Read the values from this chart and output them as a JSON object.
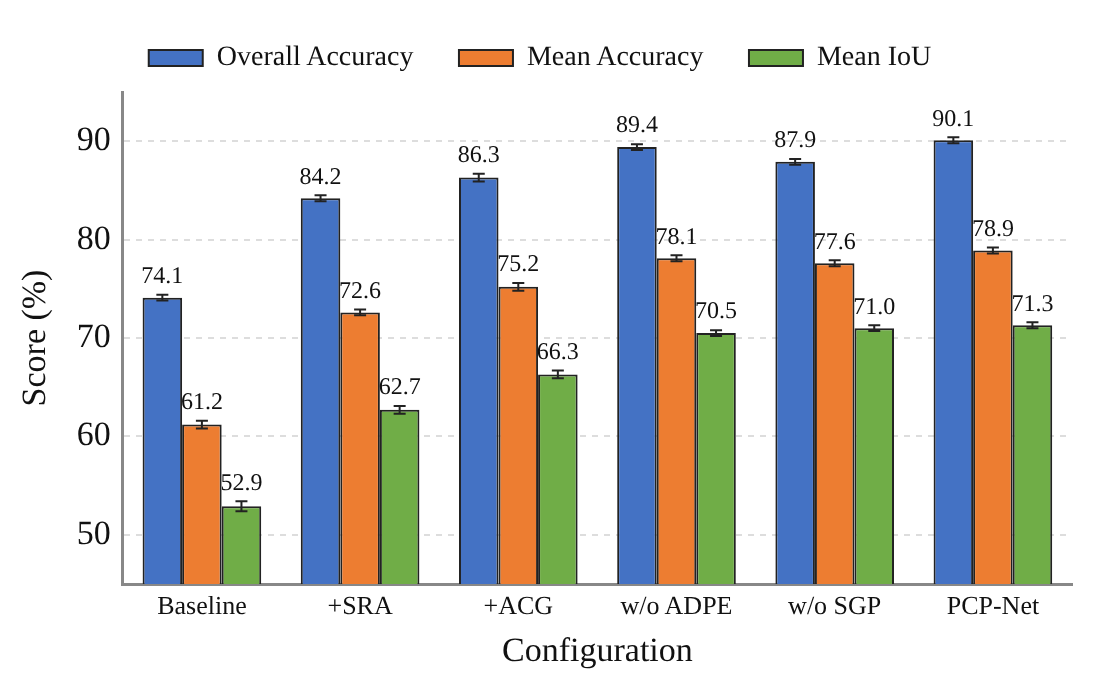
{
  "chart_data": {
    "type": "bar",
    "xlabel": "Configuration",
    "ylabel": "Score (%)",
    "categories": [
      "Baseline",
      "+SRA",
      "+ACG",
      "w/o ADPE",
      "w/o SGP",
      "PCP-Net"
    ],
    "series": [
      {
        "name": "Overall Accuracy",
        "color": "#4472c4",
        "values": [
          74.1,
          84.2,
          86.3,
          89.4,
          87.9,
          90.1
        ],
        "errors": [
          0.3,
          0.3,
          0.4,
          0.3,
          0.3,
          0.3
        ],
        "value_labels": [
          "74.1",
          "84.2",
          "86.3",
          "89.4",
          "87.9",
          "90.1"
        ]
      },
      {
        "name": "Mean Accuracy",
        "color": "#ed7d31",
        "values": [
          61.2,
          72.6,
          75.2,
          78.1,
          77.6,
          78.9
        ],
        "errors": [
          0.4,
          0.3,
          0.4,
          0.3,
          0.3,
          0.3
        ],
        "value_labels": [
          "61.2",
          "72.6",
          "75.2",
          "78.1",
          "77.6",
          "78.9"
        ]
      },
      {
        "name": "Mean IoU",
        "color": "#70ad47",
        "values": [
          52.9,
          62.7,
          66.3,
          70.5,
          71.0,
          71.3
        ],
        "errors": [
          0.5,
          0.4,
          0.4,
          0.3,
          0.3,
          0.3
        ],
        "value_labels": [
          "52.9",
          "62.7",
          "66.3",
          "70.5",
          "71.0",
          "71.3"
        ]
      }
    ],
    "ylim": [
      45,
      95
    ],
    "yticks": [
      50,
      60,
      70,
      80,
      90
    ],
    "grid": "y",
    "legend": "top"
  }
}
